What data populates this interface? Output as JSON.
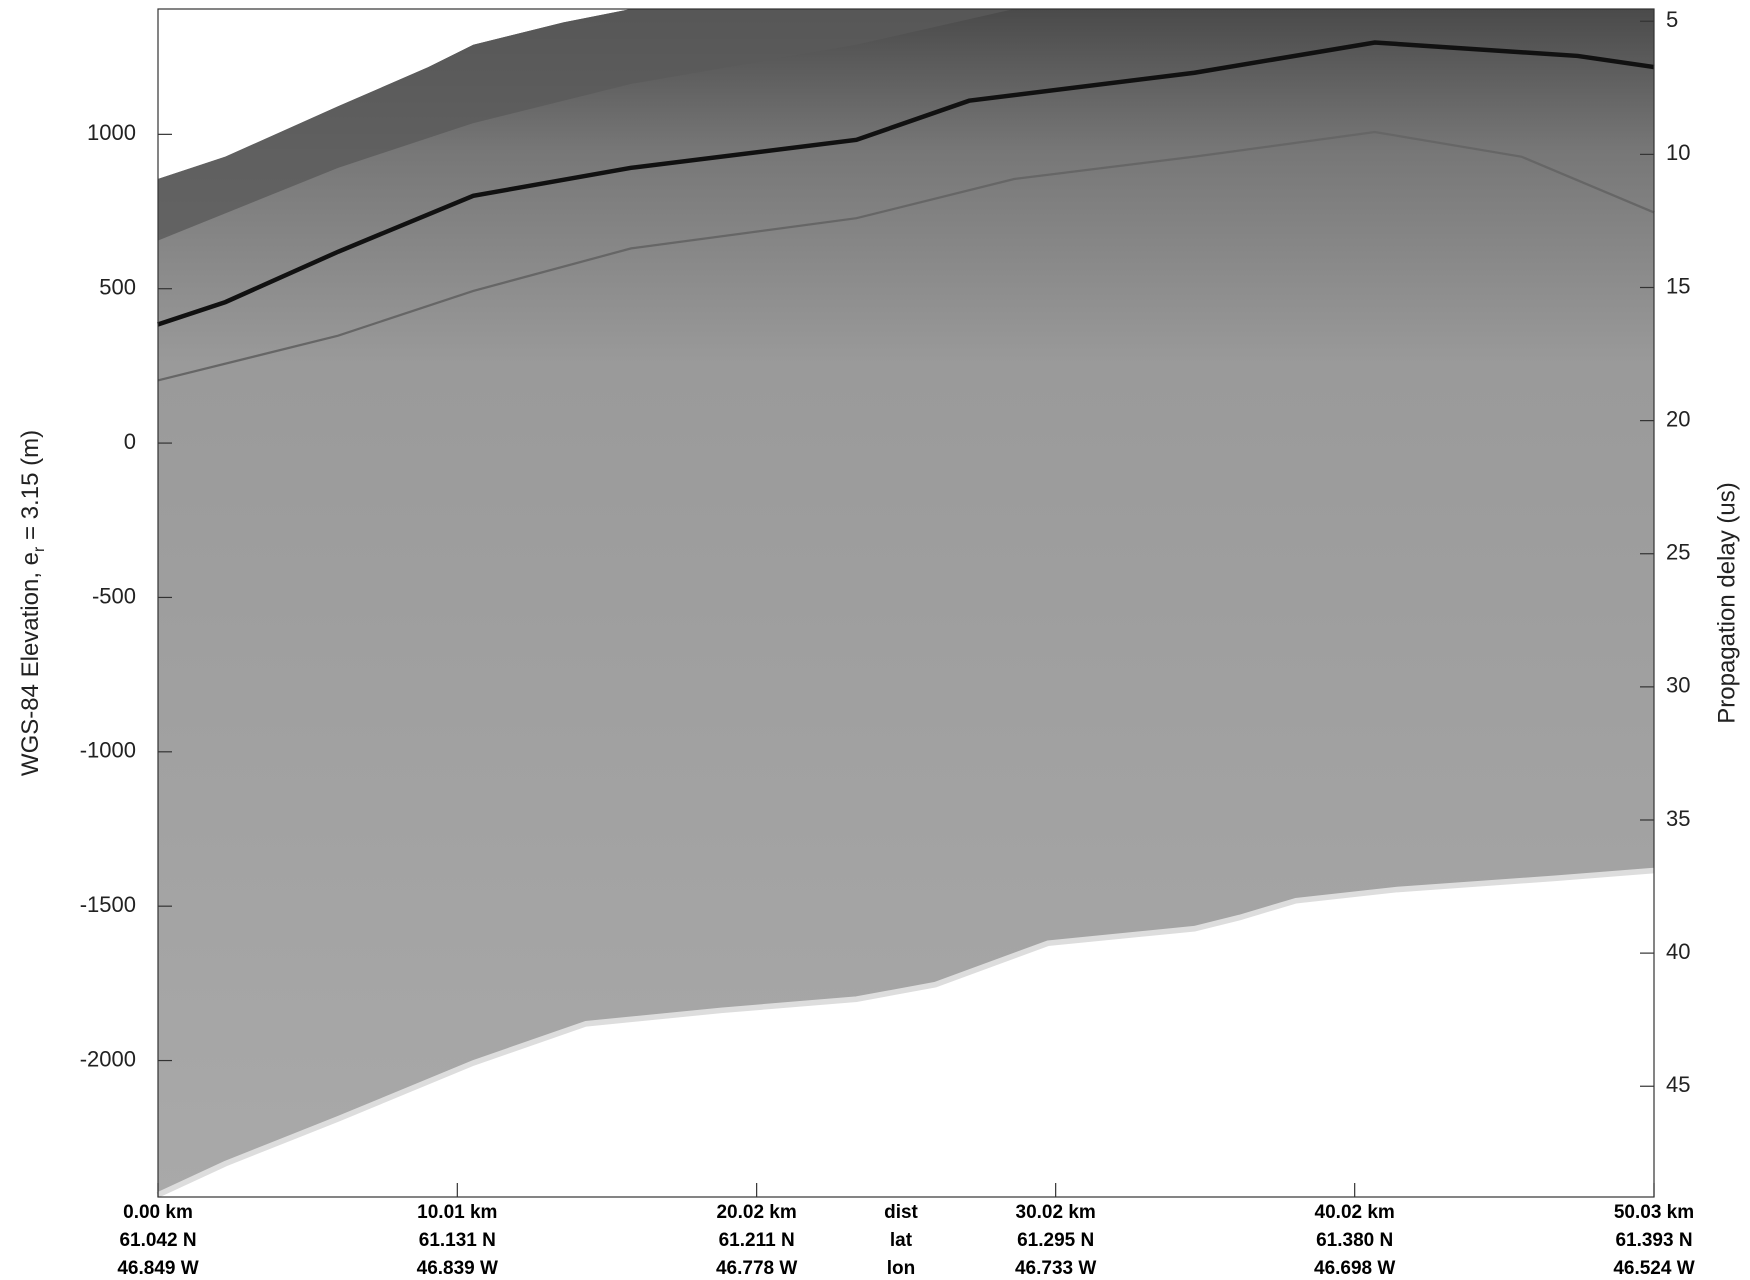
{
  "chart_data": {
    "type": "echogram",
    "ylabel": [
      "WGS-84 Elevation, e",
      "r",
      " = 3.15 (m)"
    ],
    "y2label": "Propagation delay (us)",
    "ylim": [
      -2442,
      1406
    ],
    "yticks": [
      1000,
      500,
      0,
      -500,
      -1000,
      -1500,
      -2000
    ],
    "y2lim": [
      4.54,
      49.16
    ],
    "y2_reversed": true,
    "y2ticks": [
      5,
      10,
      15,
      20,
      25,
      30,
      35,
      40,
      45
    ],
    "xlim": [
      0,
      50.03
    ],
    "xticks": [
      {
        "value": 0,
        "label": "0.00 km"
      },
      {
        "value": 10.01,
        "label": "10.01 km"
      },
      {
        "value": 20.02,
        "label": "20.02 km"
      },
      {
        "value": 30.02,
        "label": "30.02 km"
      },
      {
        "value": 40.02,
        "label": "40.02 km"
      },
      {
        "value": 50.03,
        "label": "50.03 km"
      }
    ],
    "lat": [
      "61.042 N",
      "61.131 N",
      "61.211 N",
      "61.295 N",
      "61.380 N",
      "61.393 N"
    ],
    "lon": [
      "46.849 W",
      "46.839 W",
      "46.778 W",
      "46.733 W",
      "46.698 W",
      "46.524 W"
    ],
    "row_labels": [
      "dist",
      "lat",
      "lon"
    ]
  }
}
